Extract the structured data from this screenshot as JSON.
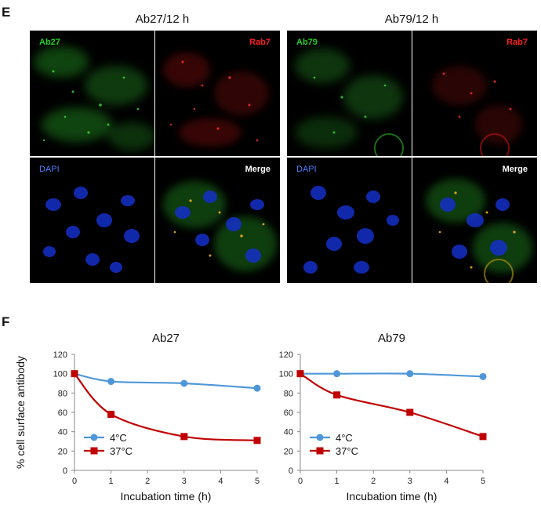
{
  "panel_e": {
    "letter": "E",
    "groups": [
      {
        "title": "Ab27/12 h",
        "labels": {
          "green": "Ab27",
          "red": "Rab7",
          "blue": "DAPI",
          "merge": "Merge"
        }
      },
      {
        "title": "Ab79/12 h",
        "labels": {
          "green": "Ab79",
          "red": "Rab7",
          "blue": "DAPI",
          "merge": "Merge"
        }
      }
    ]
  },
  "panel_f": {
    "letter": "F"
  },
  "colors": {
    "series_4C": "#4f97d8",
    "series_37C": "#c00000"
  },
  "chart_data": [
    {
      "type": "line",
      "title": "Ab27",
      "xlabel": "Incubation time (h)",
      "ylabel": "% cell surface antibody",
      "xlim": [
        0,
        5
      ],
      "ylim": [
        0,
        120
      ],
      "xticks": [
        0,
        1,
        2,
        3,
        4,
        5
      ],
      "yticks": [
        0,
        20,
        40,
        60,
        80,
        100,
        120
      ],
      "legend_position": "bottom-left",
      "series": [
        {
          "name": "4°C",
          "x": [
            0,
            1,
            3,
            5
          ],
          "y": [
            100,
            92,
            90,
            85
          ],
          "color": "#4f97d8",
          "marker": "circle"
        },
        {
          "name": "37°C",
          "x": [
            0,
            1,
            3,
            5
          ],
          "y": [
            100,
            58,
            35,
            31
          ],
          "color": "#c00000",
          "marker": "square"
        }
      ]
    },
    {
      "type": "line",
      "title": "Ab79",
      "xlabel": "Incubation time (h)",
      "ylabel": "",
      "xlim": [
        0,
        5
      ],
      "ylim": [
        0,
        120
      ],
      "xticks": [
        0,
        1,
        2,
        3,
        4,
        5
      ],
      "yticks": [
        0,
        20,
        40,
        60,
        80,
        100,
        120
      ],
      "legend_position": "bottom-left",
      "series": [
        {
          "name": "4°C",
          "x": [
            0,
            1,
            3,
            5
          ],
          "y": [
            100,
            100,
            100,
            97
          ],
          "color": "#4f97d8",
          "marker": "circle"
        },
        {
          "name": "37°C",
          "x": [
            0,
            1,
            3,
            5
          ],
          "y": [
            100,
            78,
            60,
            35
          ],
          "color": "#c00000",
          "marker": "square"
        }
      ]
    }
  ]
}
